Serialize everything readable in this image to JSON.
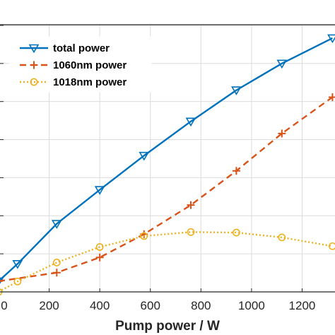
{
  "chart_data": {
    "type": "line",
    "xlabel": "Pump power / W",
    "ylabel": "",
    "xlim": [
      0,
      1330
    ],
    "ylim": [
      0,
      100
    ],
    "x_ticks": [
      0,
      200,
      400,
      600,
      800,
      1000,
      1200
    ],
    "x_tick_labels": [
      "0",
      "200",
      "400",
      "600",
      "800",
      "1000",
      "1200"
    ],
    "grid": true,
    "legend_position": "top-left",
    "series": [
      {
        "name": "total power",
        "color": "#0072BD",
        "style": "solid",
        "marker": "triangle-down",
        "x": [
          0,
          75,
          230,
          400,
          575,
          760,
          940,
          1120,
          1320
        ],
        "y": [
          4,
          10.5,
          25.5,
          38.2,
          51,
          63.8,
          75.5,
          85.5,
          95
        ]
      },
      {
        "name": "1060nm power",
        "color": "#D95319",
        "style": "dashed",
        "marker": "plus",
        "x": [
          0,
          230,
          400,
          575,
          760,
          940,
          1120,
          1320
        ],
        "y": [
          4,
          7.2,
          12.9,
          21.6,
          32.5,
          45.3,
          59.3,
          72.9
        ]
      },
      {
        "name": "1018nm power",
        "color": "#EDB120",
        "style": "dotted",
        "marker": "circle",
        "x": [
          0,
          75,
          230,
          400,
          575,
          760,
          940,
          1120,
          1320
        ],
        "y": [
          0,
          3.9,
          11,
          16.8,
          20.9,
          22.4,
          22.2,
          20.4,
          17.1
        ]
      }
    ]
  }
}
